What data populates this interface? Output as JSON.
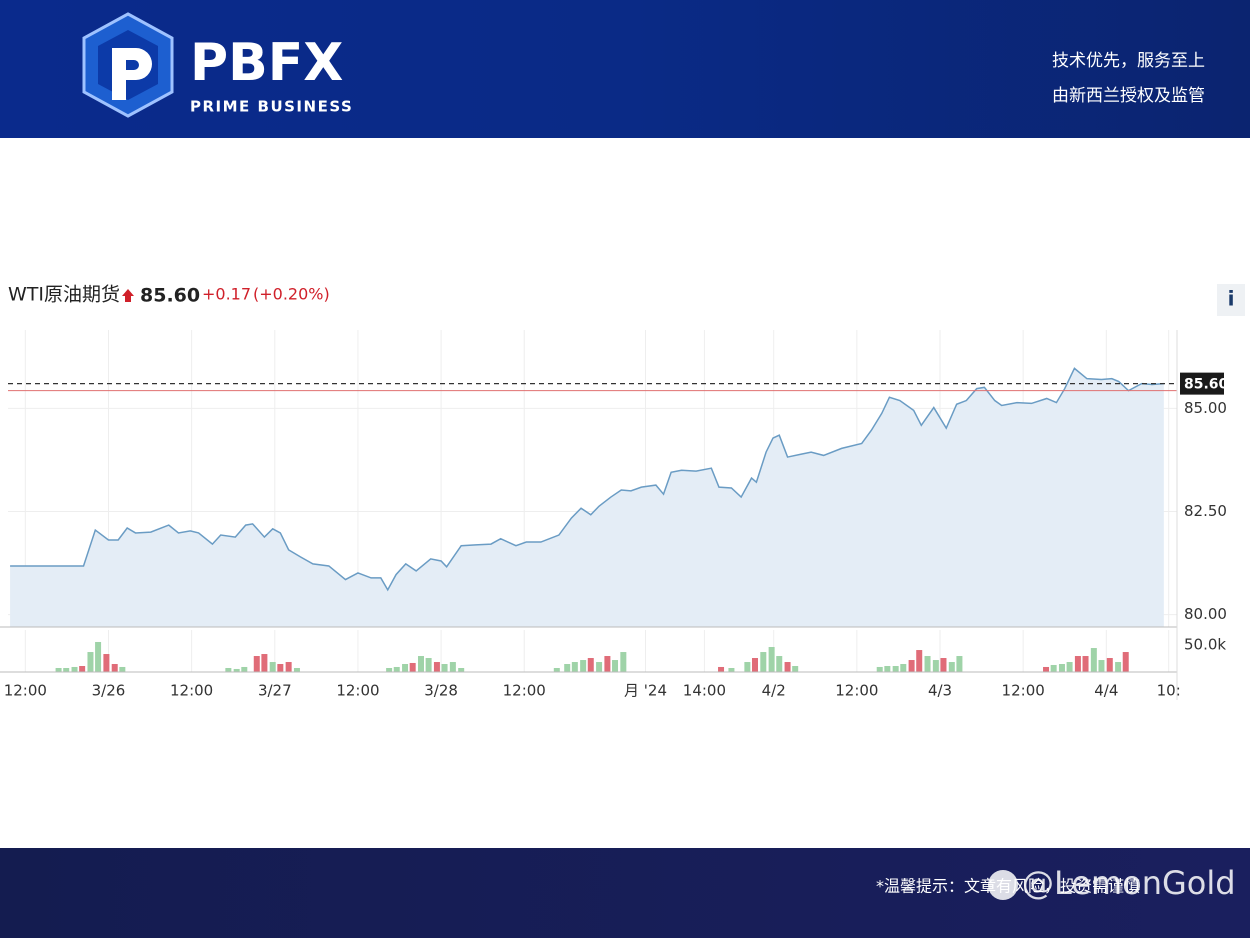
{
  "header": {
    "logo": "PBFX",
    "logo_subtitle": "PRIME BUSINESS",
    "slogan": "技术优先，服务至上",
    "regulation": "由新西兰授权及监管"
  },
  "info_button": "i",
  "footer": {
    "notice": "*温馨提示：文章有风险，投资需谨慎",
    "watermark": "@LemonGold"
  },
  "chart_data": [
    {
      "type": "area",
      "title": "WTI原油期货",
      "last": {
        "value": 85.6,
        "label": "85.60"
      },
      "change": "+0.17",
      "change_pct": "(+0.20%)",
      "prev_close": 85.43,
      "color": "#6a9cc4",
      "fill": "#e4edf6",
      "grid": true,
      "x": [
        9.8,
        20.4,
        22.1,
        24.0,
        25.4,
        26.7,
        27.9,
        30.1,
        32.7,
        34.1,
        35.8,
        37.0,
        39.0,
        40.2,
        42.3,
        43.8,
        44.8,
        46.5,
        47.7,
        48.8,
        50.0,
        51.7,
        53.5,
        55.8,
        58.2,
        60.0,
        61.9,
        63.3,
        64.3,
        65.5,
        66.9,
        68.4,
        70.5,
        72.0,
        72.8,
        74.9,
        77.0,
        79.2,
        80.6,
        82.8,
        84.3,
        86.4,
        89.0,
        90.8,
        92.2,
        93.6,
        94.8,
        96.5,
        98.0,
        99.4,
        100.9,
        103.0,
        104.1,
        105.2,
        106.7,
        108.8,
        111.0,
        112.1,
        113.9,
        115.3,
        116.8,
        117.5,
        118.9,
        119.9,
        120.8,
        122.0,
        124.0,
        125.4,
        127.2,
        129.8,
        132.7,
        134.1,
        135.6,
        136.7,
        138.2,
        140.2,
        141.3,
        143.1,
        144.9,
        146.4,
        147.8,
        149.3,
        150.4,
        151.9,
        152.9,
        155.1,
        157.2,
        159.4,
        160.8,
        162.0,
        163.4,
        165.2,
        167.3,
        168.8,
        169.8,
        171.2,
        173.1,
        174.6,
        176.3
      ],
      "values": [
        81.18,
        81.18,
        82.05,
        81.81,
        81.81,
        82.1,
        81.98,
        82.0,
        82.17,
        81.98,
        82.03,
        81.98,
        81.71,
        81.93,
        81.88,
        82.17,
        82.2,
        81.88,
        82.08,
        81.98,
        81.57,
        81.4,
        81.23,
        81.18,
        80.85,
        81.01,
        80.89,
        80.89,
        80.6,
        80.97,
        81.23,
        81.06,
        81.35,
        81.3,
        81.16,
        81.67,
        81.69,
        81.71,
        81.84,
        81.67,
        81.76,
        81.76,
        81.93,
        82.34,
        82.58,
        82.42,
        82.63,
        82.85,
        83.02,
        83.0,
        83.09,
        83.14,
        82.92,
        83.45,
        83.5,
        83.48,
        83.55,
        83.09,
        83.07,
        82.85,
        83.31,
        83.21,
        83.94,
        84.28,
        84.35,
        83.82,
        83.89,
        83.94,
        83.86,
        84.03,
        84.15,
        84.47,
        84.88,
        85.27,
        85.19,
        84.95,
        84.59,
        85.02,
        84.52,
        85.1,
        85.19,
        85.48,
        85.51,
        85.19,
        85.07,
        85.14,
        85.12,
        85.24,
        85.14,
        85.48,
        85.97,
        85.72,
        85.7,
        85.72,
        85.65,
        85.43,
        85.6,
        85.58,
        85.6
      ],
      "xlim": [
        9.5,
        178.2
      ],
      "ylim": [
        79.7,
        86.9
      ],
      "yticks": [
        {
          "value": 80,
          "label": "80.00"
        },
        {
          "value": 82.5,
          "label": "82.50"
        },
        {
          "value": 85,
          "label": "85.00"
        }
      ]
    },
    {
      "type": "bar",
      "x": [
        16.8,
        17.9,
        19.1,
        20.2,
        21.4,
        22.5,
        23.7,
        24.9,
        26.0,
        41.3,
        42.5,
        43.6,
        45.4,
        46.5,
        47.7,
        48.8,
        50.0,
        51.2,
        64.5,
        65.6,
        66.8,
        67.9,
        69.1,
        70.2,
        71.4,
        72.5,
        73.7,
        74.9,
        88.7,
        90.2,
        91.3,
        92.5,
        93.6,
        94.8,
        96.0,
        97.1,
        98.3,
        112.4,
        113.9,
        116.2,
        117.3,
        118.5,
        119.7,
        120.8,
        122.0,
        123.1,
        135.3,
        136.4,
        137.6,
        138.7,
        139.9,
        141.0,
        142.2,
        143.4,
        144.5,
        145.7,
        146.8,
        159.3,
        160.4,
        161.6,
        162.7,
        163.9,
        165.0,
        166.2,
        167.3,
        168.5,
        169.7,
        170.8
      ],
      "values": [
        7400,
        7400,
        9300,
        11100,
        37000,
        55600,
        33300,
        14800,
        9300,
        7400,
        5600,
        9300,
        29600,
        33300,
        18500,
        14800,
        18500,
        7400,
        7400,
        9300,
        14800,
        16700,
        29600,
        25900,
        18500,
        14800,
        18500,
        7400,
        7400,
        14800,
        18500,
        22200,
        25900,
        18500,
        29600,
        22200,
        37000,
        9300,
        7400,
        18500,
        25900,
        37000,
        46300,
        29600,
        18500,
        11100,
        9300,
        11100,
        11100,
        14800,
        22200,
        40700,
        29600,
        22200,
        25900,
        18500,
        29600,
        9300,
        13000,
        14800,
        18500,
        29600,
        29600,
        44400,
        22200,
        25900,
        18500,
        37000
      ],
      "colors": [
        "#9fd3a8",
        "#9fd3a8",
        "#9fd3a8",
        "#e06c78",
        "#9fd3a8",
        "#9fd3a8",
        "#e06c78",
        "#e06c78",
        "#9fd3a8",
        "#9fd3a8",
        "#9fd3a8",
        "#9fd3a8",
        "#e06c78",
        "#e06c78",
        "#9fd3a8",
        "#e06c78",
        "#e06c78",
        "#9fd3a8",
        "#9fd3a8",
        "#9fd3a8",
        "#9fd3a8",
        "#e06c78",
        "#9fd3a8",
        "#9fd3a8",
        "#e06c78",
        "#9fd3a8",
        "#9fd3a8",
        "#9fd3a8",
        "#9fd3a8",
        "#9fd3a8",
        "#9fd3a8",
        "#9fd3a8",
        "#e06c78",
        "#9fd3a8",
        "#e06c78",
        "#9fd3a8",
        "#9fd3a8",
        "#e06c78",
        "#9fd3a8",
        "#9fd3a8",
        "#e06c78",
        "#9fd3a8",
        "#9fd3a8",
        "#9fd3a8",
        "#e06c78",
        "#9fd3a8",
        "#9fd3a8",
        "#9fd3a8",
        "#9fd3a8",
        "#9fd3a8",
        "#e06c78",
        "#e06c78",
        "#9fd3a8",
        "#9fd3a8",
        "#e06c78",
        "#9fd3a8",
        "#9fd3a8",
        "#e06c78",
        "#9fd3a8",
        "#9fd3a8",
        "#9fd3a8",
        "#e06c78",
        "#e06c78",
        "#9fd3a8",
        "#9fd3a8",
        "#e06c78",
        "#9fd3a8",
        "#e06c78"
      ],
      "xlim": [
        9.5,
        178.2
      ],
      "ylim": [
        0,
        77800
      ],
      "yticks": [
        {
          "value": 50000,
          "label": "50.0k"
        }
      ],
      "xticks": [
        {
          "value": 12,
          "label": "12:00"
        },
        {
          "value": 24,
          "label": "3/26"
        },
        {
          "value": 36,
          "label": "12:00"
        },
        {
          "value": 48,
          "label": "3/27"
        },
        {
          "value": 60,
          "label": "12:00"
        },
        {
          "value": 72,
          "label": "3/28"
        },
        {
          "value": 84,
          "label": "12:00"
        },
        {
          "value": 101.5,
          "label": "月 '24"
        },
        {
          "value": 110,
          "label": "14:00"
        },
        {
          "value": 120,
          "label": "4/2"
        },
        {
          "value": 132,
          "label": "12:00"
        },
        {
          "value": 144,
          "label": "4/3"
        },
        {
          "value": 156,
          "label": "12:00"
        },
        {
          "value": 168,
          "label": "4/4"
        },
        {
          "value": 177,
          "label": "10:"
        }
      ]
    }
  ]
}
